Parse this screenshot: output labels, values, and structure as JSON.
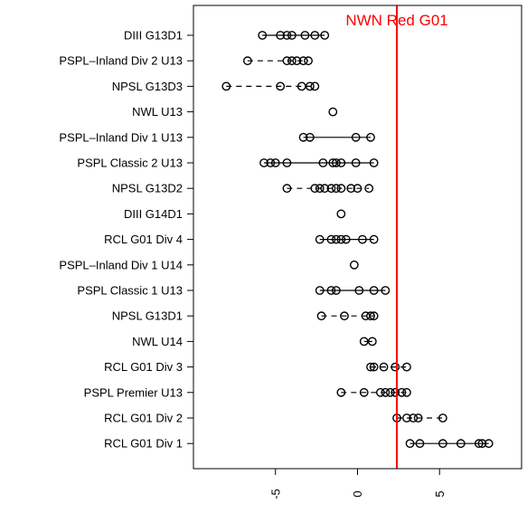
{
  "chart_data": {
    "type": "scatter",
    "title": "",
    "xlabel": "",
    "ylabel": "",
    "xlim": [
      -10,
      10
    ],
    "x_ticks": [
      -5,
      0,
      5
    ],
    "x_tick_labels": [
      "-5",
      "0",
      "5"
    ],
    "grid": false,
    "legend": "none",
    "categories": [
      "DIII G13D1",
      "PSPL–Inland Div 2 U13",
      "NPSL G13D3",
      "NWL U13",
      "PSPL–Inland Div 1 U13",
      "PSPL Classic 2 U13",
      "NPSL G13D2",
      "DIII G14D1",
      "RCL G01 Div 4",
      "PSPL–Inland Div 1 U14",
      "PSPL Classic 1 U13",
      "NPSL G13D1",
      "NWL U14",
      "RCL G01 Div 3",
      "PSPL Premier U13",
      "RCL G01 Div 2",
      "RCL G01 Div 1"
    ],
    "series": [
      {
        "category": "DIII G13D1",
        "points": [
          -5.8,
          -4.7,
          -4.3,
          -4.0,
          -3.2,
          -2.6,
          -2.0
        ],
        "range_style": "solid"
      },
      {
        "category": "PSPL–Inland Div 2 U13",
        "points": [
          -6.7,
          -4.3,
          -4.0,
          -3.7,
          -3.3,
          -3.0
        ],
        "range_style": "dashed"
      },
      {
        "category": "NPSL G13D3",
        "points": [
          -8.0,
          -4.7,
          -3.4,
          -2.9,
          -2.6
        ],
        "range_style": "dashed"
      },
      {
        "category": "NWL U13",
        "points": [
          -1.5
        ],
        "range_style": "solid"
      },
      {
        "category": "PSPL–Inland Div 1 U13",
        "points": [
          -3.3,
          -2.9,
          -0.1,
          0.8
        ],
        "range_style": "solid"
      },
      {
        "category": "PSPL Classic 2 U13",
        "points": [
          -5.7,
          -5.3,
          -5.0,
          -4.3,
          -2.1,
          -1.5,
          -1.3,
          -1.0,
          -0.1,
          1.0
        ],
        "range_style": "solid"
      },
      {
        "category": "NPSL G13D2",
        "points": [
          -4.3,
          -2.6,
          -2.3,
          -2.0,
          -1.6,
          -1.3,
          -1.0,
          -0.4,
          0.0,
          0.7
        ],
        "range_style": "dashed"
      },
      {
        "category": "DIII G14D1",
        "points": [
          -1.0
        ],
        "range_style": "solid"
      },
      {
        "category": "RCL G01 Div 4",
        "points": [
          -2.3,
          -1.6,
          -1.3,
          -1.0,
          -0.7,
          0.3,
          1.0
        ],
        "range_style": "solid"
      },
      {
        "category": "PSPL–Inland Div 1 U14",
        "points": [
          -0.2
        ],
        "range_style": "solid"
      },
      {
        "category": "PSPL Classic 1 U13",
        "points": [
          -2.3,
          -1.6,
          -1.3,
          0.1,
          1.0,
          1.7
        ],
        "range_style": "solid"
      },
      {
        "category": "NPSL G13D1",
        "points": [
          -2.2,
          -0.8,
          0.5,
          0.8,
          1.0
        ],
        "range_style": "dashed"
      },
      {
        "category": "NWL U14",
        "points": [
          0.4,
          0.9
        ],
        "range_style": "solid"
      },
      {
        "category": "RCL G01 Div 3",
        "points": [
          0.8,
          1.0,
          1.6,
          2.3,
          3.0
        ],
        "range_style": "dashed"
      },
      {
        "category": "PSPL Premier U13",
        "points": [
          -1.0,
          0.4,
          1.4,
          1.7,
          2.0,
          2.3,
          2.7,
          3.0
        ],
        "range_style": "dashed"
      },
      {
        "category": "RCL G01 Div 2",
        "points": [
          2.4,
          3.0,
          3.4,
          3.7,
          5.2
        ],
        "range_style": "dashed"
      },
      {
        "category": "RCL G01 Div 1",
        "points": [
          3.2,
          3.8,
          5.2,
          6.3,
          7.4,
          7.6,
          8.0
        ],
        "range_style": "solid"
      }
    ],
    "reference_line": {
      "x": 2.4,
      "label": "NWN Red G01",
      "color": "#ff0000"
    },
    "point_color": "#000000"
  }
}
